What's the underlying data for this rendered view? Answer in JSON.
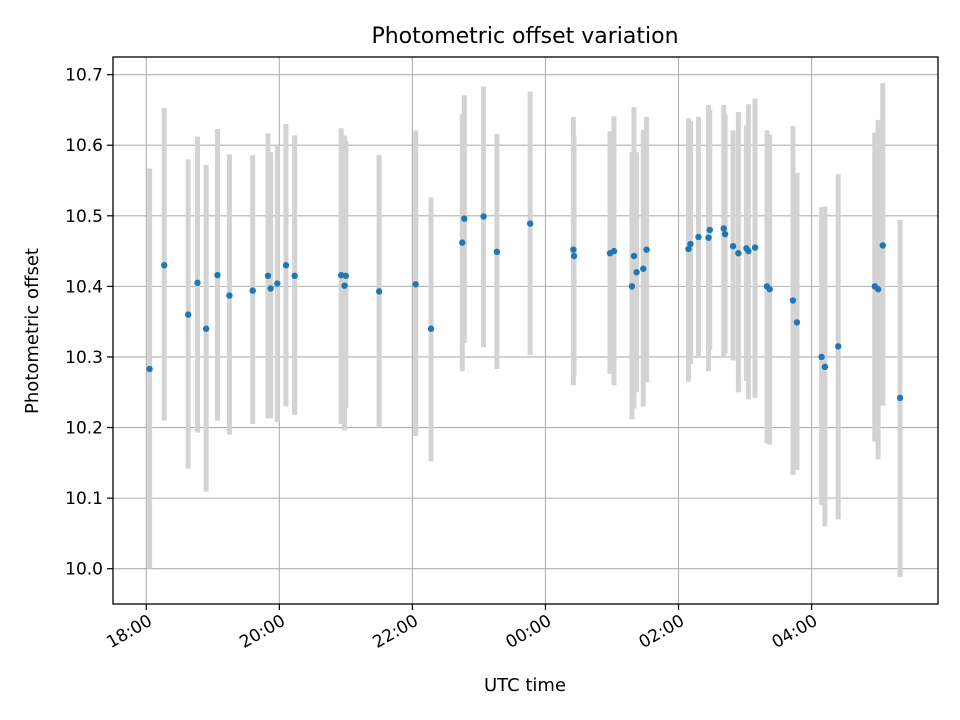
{
  "chart_data": {
    "type": "scatter",
    "title": "Photometric offset variation",
    "xlabel": "UTC time",
    "ylabel": "Photometric offset",
    "x_unit": "hours UTC (values past 24 fall on the following day)",
    "xlim": [
      17.5,
      29.9
    ],
    "ylim": [
      9.95,
      10.725
    ],
    "x_ticks": [
      18,
      20,
      22,
      24,
      26,
      28
    ],
    "x_tick_labels": [
      "18:00",
      "20:00",
      "22:00",
      "00:00",
      "02:00",
      "04:00"
    ],
    "y_ticks": [
      10.0,
      10.1,
      10.2,
      10.3,
      10.4,
      10.5,
      10.6,
      10.7
    ],
    "y_tick_labels": [
      "10.0",
      "10.1",
      "10.2",
      "10.3",
      "10.4",
      "10.5",
      "10.6",
      "10.7"
    ],
    "grid": true,
    "colors": {
      "point": "#1f77b4",
      "errorbar": "#d3d3d3",
      "grid": "#b0b0b0"
    },
    "series": [
      {
        "x": [
          18.05,
          18.27,
          18.63,
          18.77,
          18.9,
          19.07,
          19.25,
          19.6,
          19.83,
          19.87,
          19.97,
          20.1,
          20.23,
          20.93,
          20.98,
          21.0,
          21.5,
          22.05,
          22.28,
          22.75,
          22.78,
          23.07,
          23.27,
          23.77,
          24.42,
          24.43,
          24.97,
          25.03,
          25.3,
          25.33,
          25.37,
          25.47,
          25.52,
          26.15,
          26.18,
          26.3,
          26.45,
          26.47,
          26.68,
          26.7,
          26.82,
          26.9,
          27.02,
          27.05,
          27.15,
          27.33,
          27.37,
          27.72,
          27.78,
          28.15,
          28.2,
          28.4,
          28.95,
          29.0,
          29.07,
          29.33
        ],
        "y": [
          10.283,
          10.43,
          10.36,
          10.405,
          10.34,
          10.416,
          10.387,
          10.394,
          10.415,
          10.397,
          10.404,
          10.43,
          10.415,
          10.416,
          10.401,
          10.415,
          10.393,
          10.403,
          10.34,
          10.462,
          10.496,
          10.499,
          10.449,
          10.489,
          10.452,
          10.443,
          10.447,
          10.45,
          10.4,
          10.443,
          10.42,
          10.425,
          10.452,
          10.453,
          10.46,
          10.47,
          10.469,
          10.48,
          10.482,
          10.474,
          10.457,
          10.447,
          10.454,
          10.45,
          10.455,
          10.4,
          10.396,
          10.38,
          10.349,
          10.3,
          10.286,
          10.315,
          10.4,
          10.396,
          10.458,
          10.242
        ],
        "err_low": [
          10.0,
          10.21,
          10.142,
          10.193,
          10.109,
          10.21,
          10.19,
          10.205,
          10.213,
          10.213,
          10.208,
          10.23,
          10.218,
          10.205,
          10.196,
          10.228,
          10.2,
          10.188,
          10.152,
          10.28,
          10.32,
          10.314,
          10.283,
          10.303,
          10.26,
          10.273,
          10.276,
          10.26,
          10.212,
          10.227,
          10.25,
          10.23,
          10.264,
          10.265,
          10.29,
          10.3,
          10.28,
          10.31,
          10.3,
          10.305,
          10.295,
          10.25,
          10.266,
          10.24,
          10.242,
          10.178,
          10.176,
          10.133,
          10.14,
          10.09,
          10.06,
          10.07,
          10.18,
          10.155,
          10.231,
          9.988
        ],
        "err_high": [
          10.567,
          10.653,
          10.58,
          10.612,
          10.572,
          10.623,
          10.587,
          10.586,
          10.617,
          10.59,
          10.6,
          10.63,
          10.614,
          10.624,
          10.614,
          10.606,
          10.586,
          10.621,
          10.526,
          10.644,
          10.671,
          10.683,
          10.616,
          10.676,
          10.64,
          10.614,
          10.62,
          10.641,
          10.59,
          10.654,
          10.59,
          10.622,
          10.64,
          10.638,
          10.634,
          10.64,
          10.657,
          10.65,
          10.657,
          10.643,
          10.621,
          10.647,
          10.628,
          10.658,
          10.666,
          10.621,
          10.615,
          10.627,
          10.561,
          10.512,
          10.513,
          10.559,
          10.618,
          10.636,
          10.688,
          10.494
        ]
      }
    ]
  }
}
